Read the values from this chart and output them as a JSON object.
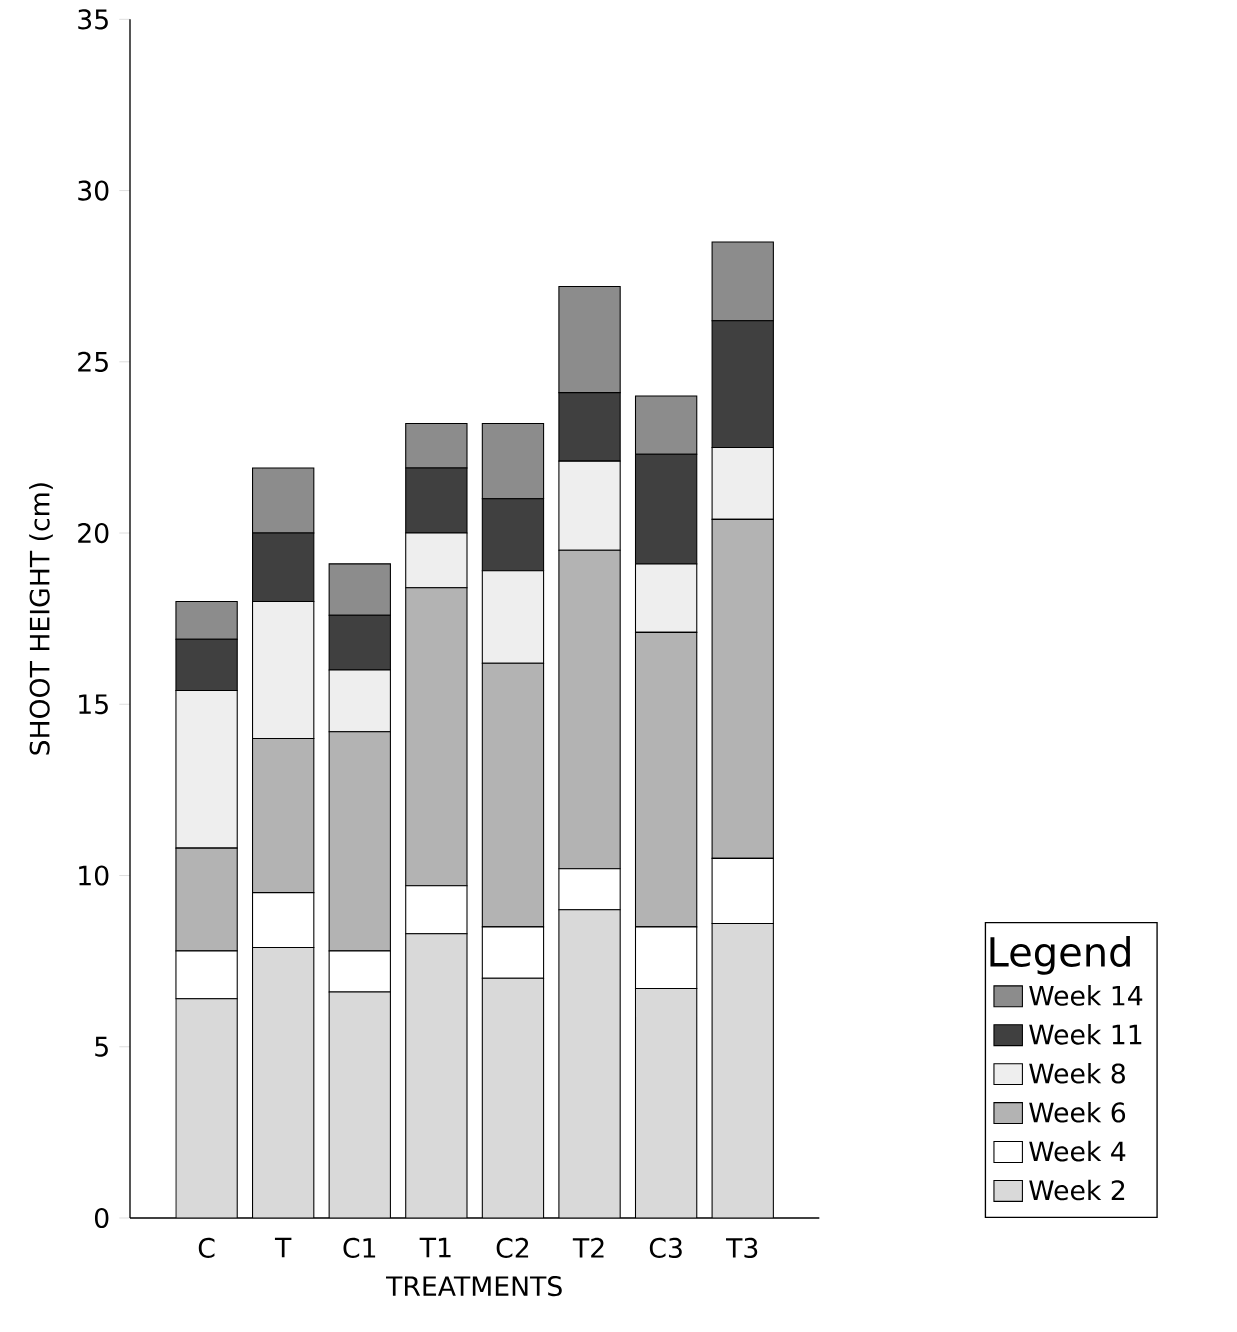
{
  "chart_data": {
    "type": "bar",
    "stacked": true,
    "xlabel": "TREATMENTS",
    "ylabel": "SHOOT HEIGHT (cm)",
    "legend_title": "Legend",
    "legend": "right",
    "categories": [
      "C",
      "T",
      "C1",
      "T1",
      "C2",
      "T2",
      "C3",
      "T3"
    ],
    "ylim": [
      0,
      35
    ],
    "yticks": [
      0,
      5,
      10,
      15,
      20,
      25,
      30,
      35
    ],
    "grid": false,
    "series": [
      {
        "name": "Week 2",
        "color": "#d9d9d9",
        "values": [
          6.4,
          7.9,
          6.6,
          8.3,
          7.0,
          9.0,
          6.7,
          8.6
        ]
      },
      {
        "name": "Week 4",
        "color": "#ffffff",
        "values": [
          1.4,
          1.6,
          1.2,
          1.4,
          1.5,
          1.2,
          1.8,
          1.9
        ]
      },
      {
        "name": "Week 6",
        "color": "#b3b3b3",
        "values": [
          3.0,
          4.5,
          6.4,
          8.7,
          7.7,
          9.3,
          8.6,
          9.9
        ]
      },
      {
        "name": "Week 8",
        "color": "#eeeeee",
        "values": [
          4.6,
          4.0,
          1.8,
          1.6,
          2.7,
          2.6,
          2.0,
          2.1
        ]
      },
      {
        "name": "Week 11",
        "color": "#404040",
        "values": [
          1.5,
          2.0,
          1.6,
          1.9,
          2.1,
          2.0,
          3.2,
          3.7
        ]
      },
      {
        "name": "Week 14",
        "color": "#8c8c8c",
        "values": [
          1.1,
          1.9,
          1.5,
          1.3,
          2.2,
          3.1,
          1.7,
          2.3
        ]
      }
    ]
  }
}
